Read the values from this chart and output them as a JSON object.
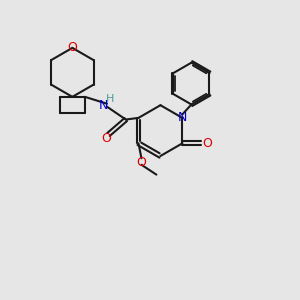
{
  "background_color": "#e6e6e6",
  "black": "#1a1a1a",
  "red": "#dd0000",
  "blue": "#0000cc",
  "teal": "#4a9a9a",
  "lw": 1.5,
  "lw_inner": 1.3,
  "fig_width": 3.0,
  "fig_height": 3.0,
  "dpi": 100,
  "xlim": [
    0,
    10
  ],
  "ylim": [
    0,
    10
  ]
}
